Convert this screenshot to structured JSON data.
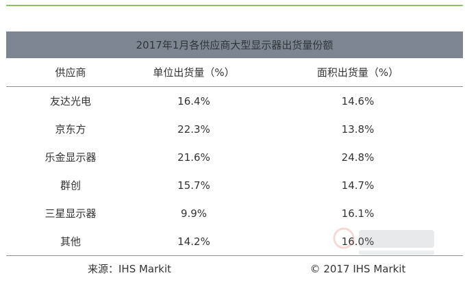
{
  "table": {
    "title": "2017年1月各供应商大型显示器出货量份额",
    "headers": [
      "供应商",
      "单位出货量（%）",
      "面积出货量（%）"
    ],
    "rows": [
      [
        "友达光电",
        "16.4%",
        "14.6%"
      ],
      [
        "京东方",
        "22.3%",
        "13.8%"
      ],
      [
        "乐金显示器",
        "21.6%",
        "24.8%"
      ],
      [
        "群创",
        "15.7%",
        "14.7%"
      ],
      [
        "三星显示器",
        "9.9%",
        "16.1%"
      ],
      [
        "其他",
        "14.2%",
        "16.0%"
      ]
    ],
    "source": "来源：IHS Markit",
    "copyright": "© 2017 IHS Markit"
  },
  "colors": {
    "top_rule": "#8dc262",
    "title_bar_bg": "#7d8690",
    "text": "#333333",
    "divider": "#8a8f95"
  }
}
